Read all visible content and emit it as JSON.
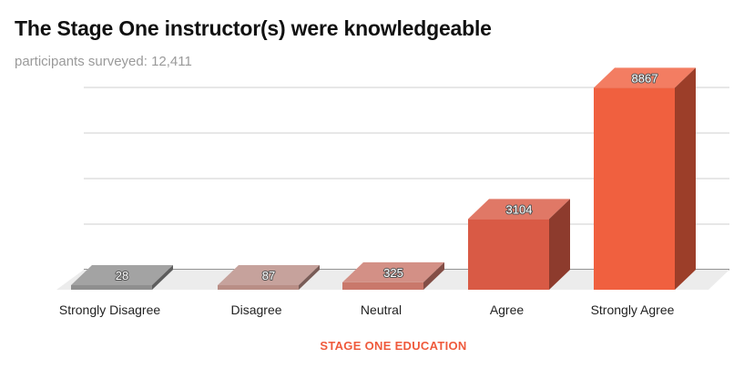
{
  "title": "The Stage One instructor(s) were knowledgeable",
  "subtitle": "participants surveyed: 12,411",
  "chart_data": {
    "type": "bar",
    "title": "The Stage One instructor(s) were knowledgeable",
    "subtitle": "participants surveyed: 12,411",
    "xlabel": "STAGE ONE EDUCATION",
    "ylabel": "",
    "categories": [
      "Strongly Disagree",
      "Disagree",
      "Neutral",
      "Agree",
      "Strongly Agree"
    ],
    "values": [
      28,
      87,
      325,
      3104,
      8867
    ],
    "ylim": [
      0,
      10000
    ],
    "grid": true,
    "legend": "none",
    "data_labels": true,
    "style": "3d",
    "bar_colors": [
      "#8f8f8f",
      "#b98e86",
      "#c9786b",
      "#d95a45",
      "#f0603f"
    ],
    "xlabel_color": "#ef5a3c"
  }
}
